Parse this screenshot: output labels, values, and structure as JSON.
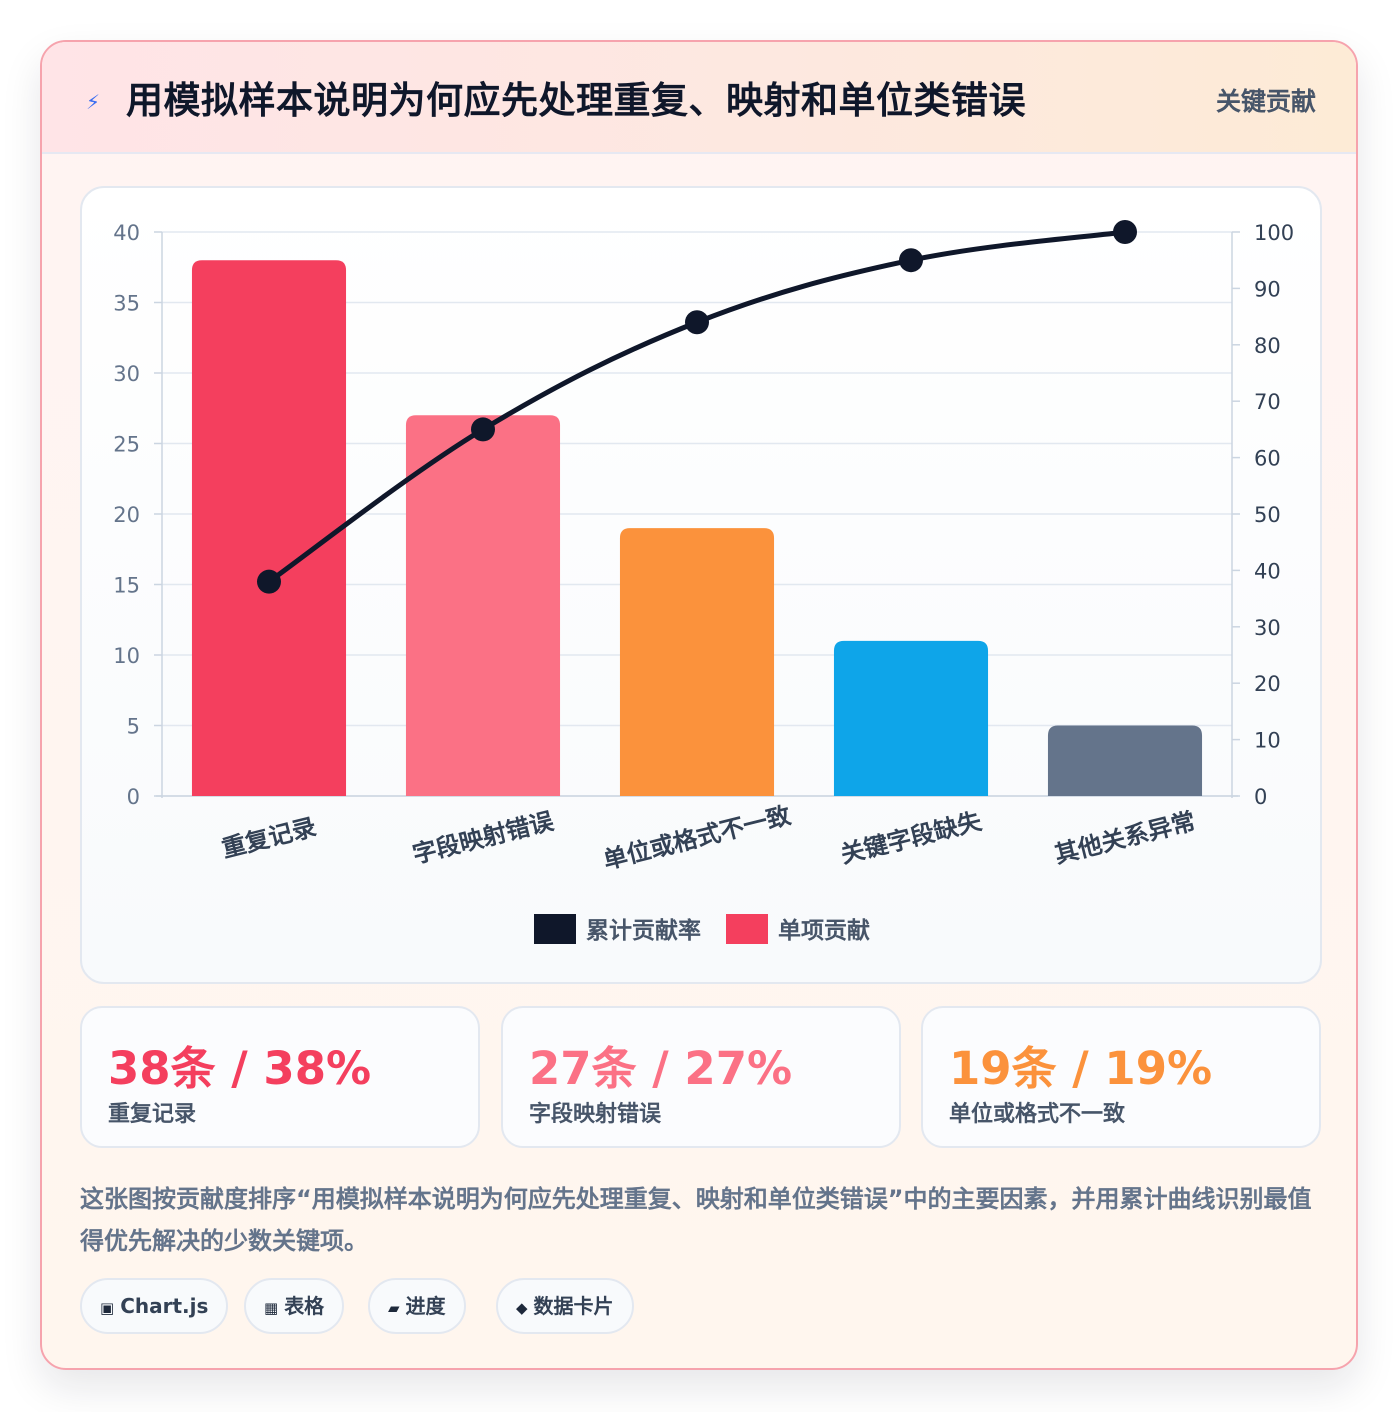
{
  "header": {
    "icon": "lightning-bolt-icon",
    "title": "用模拟样本说明为何应先处理重复、映射和单位类错误",
    "badge": "关键贡献"
  },
  "chart_data": {
    "type": "bar",
    "categories": [
      "重复记录",
      "字段映射错误",
      "单位或格式不一致",
      "关键字段缺失",
      "其他关系异常"
    ],
    "series": [
      {
        "name": "单项贡献",
        "type": "bar",
        "axis": "left",
        "values": [
          38,
          27,
          19,
          11,
          5
        ]
      },
      {
        "name": "累计贡献率",
        "type": "line",
        "axis": "right",
        "values": [
          38,
          65,
          84,
          95,
          100
        ]
      }
    ],
    "bar_colors": [
      "#f43f5e",
      "#fb7185",
      "#fb923c",
      "#0ea5e9",
      "#64748b"
    ],
    "line_color": "#0f172a",
    "y_left": {
      "min": 0,
      "max": 40,
      "ticks": [
        0,
        5,
        10,
        15,
        20,
        25,
        30,
        35,
        40
      ]
    },
    "y_right": {
      "min": 0,
      "max": 100,
      "ticks": [
        0,
        10,
        20,
        30,
        40,
        50,
        60,
        70,
        80,
        90,
        100
      ]
    },
    "grid": true,
    "legend_position": "bottom",
    "legend": [
      {
        "label": "累计贡献率",
        "color": "#0f172a"
      },
      {
        "label": "单项贡献",
        "color": "#f43f5e"
      }
    ]
  },
  "stats": [
    {
      "value": "38条 / 38%",
      "label": "重复记录",
      "color": "#f43f5e"
    },
    {
      "value": "27条 / 27%",
      "label": "字段映射错误",
      "color": "#fb7185"
    },
    {
      "value": "19条 / 19%",
      "label": "单位或格式不一致",
      "color": "#fb923c"
    }
  ],
  "description": "这张图按贡献度排序“用模拟样本说明为何应先处理重复、映射和单位类错误”中的主要因素，并用累计曲线识别最值得优先解决的少数关键项。",
  "tags": [
    {
      "icon": "square-icon",
      "glyph": "▣",
      "label": "Chart.js"
    },
    {
      "icon": "table-icon",
      "glyph": "▦",
      "label": "表格"
    },
    {
      "icon": "progress-icon",
      "glyph": "▰",
      "label": "进度"
    },
    {
      "icon": "diamond-icon",
      "glyph": "◆",
      "label": "数据卡片"
    }
  ]
}
